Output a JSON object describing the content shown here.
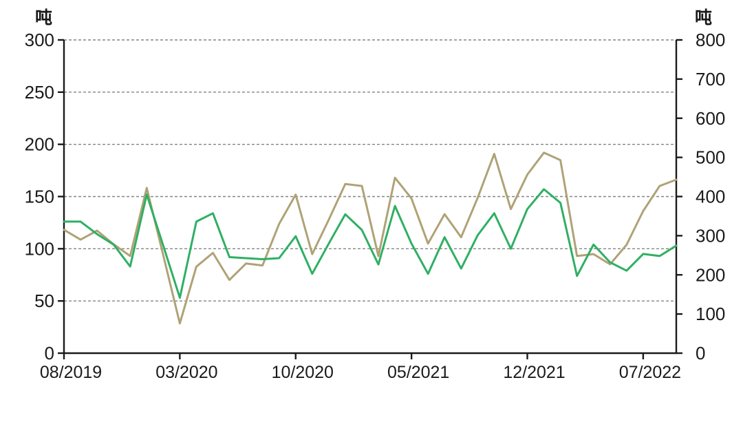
{
  "chart_data": {
    "type": "line",
    "title": "",
    "legend_position": "none",
    "x": [
      "08/2019",
      "09/2019",
      "10/2019",
      "11/2019",
      "12/2019",
      "01/2020",
      "02/2020",
      "03/2020",
      "04/2020",
      "05/2020",
      "06/2020",
      "07/2020",
      "08/2020",
      "09/2020",
      "10/2020",
      "11/2020",
      "12/2020",
      "01/2021",
      "02/2021",
      "03/2021",
      "04/2021",
      "05/2021",
      "06/2021",
      "07/2021",
      "08/2021",
      "09/2021",
      "10/2021",
      "11/2021",
      "12/2021",
      "01/2022",
      "02/2022",
      "03/2022",
      "04/2022",
      "05/2022",
      "06/2022",
      "07/2022",
      "08/2022",
      "09/2022"
    ],
    "x_tick_indices": [
      0,
      7,
      14,
      21,
      28,
      35
    ],
    "x_tick_labels": [
      "08/2019",
      "03/2020",
      "10/2020",
      "05/2021",
      "12/2021",
      "07/2022"
    ],
    "left_axis": {
      "unit": "吨",
      "min": 0,
      "max": 300,
      "step": 50,
      "tick_labels": [
        "0",
        "50",
        "100",
        "150",
        "200",
        "250",
        "300"
      ]
    },
    "right_axis": {
      "unit": "吨",
      "min": 0,
      "max": 800,
      "step": 100,
      "tick_labels": [
        "0",
        "100",
        "200",
        "300",
        "400",
        "500",
        "600",
        "700",
        "800"
      ]
    },
    "series": [
      {
        "name": "khaki-line-right-axis",
        "axis": "right",
        "color": "#AFA276",
        "values": [
          315,
          290,
          313,
          278,
          248,
          422,
          250,
          76,
          221,
          256,
          187,
          229,
          224,
          330,
          405,
          253,
          341,
          432,
          427,
          248,
          448,
          395,
          280,
          355,
          296,
          397,
          509,
          368,
          456,
          512,
          493,
          248,
          253,
          227,
          277,
          363,
          427,
          443
        ]
      },
      {
        "name": "green-line-left-axis",
        "axis": "left",
        "color": "#2FAF64",
        "values": [
          126,
          126,
          114,
          104,
          83,
          152,
          103,
          53,
          126,
          134,
          92,
          91,
          90,
          91,
          112,
          76,
          105,
          133,
          118,
          85,
          141,
          105,
          76,
          111,
          81,
          113,
          134,
          100,
          138,
          157,
          144,
          74,
          104,
          87,
          79,
          95,
          93,
          103
        ]
      }
    ],
    "grid": {
      "show": true,
      "style": "dashed",
      "color": "#838383",
      "at_left_axis_values": [
        50,
        100,
        150,
        200,
        250,
        300
      ]
    },
    "axis_color": "#1a1a1a"
  }
}
